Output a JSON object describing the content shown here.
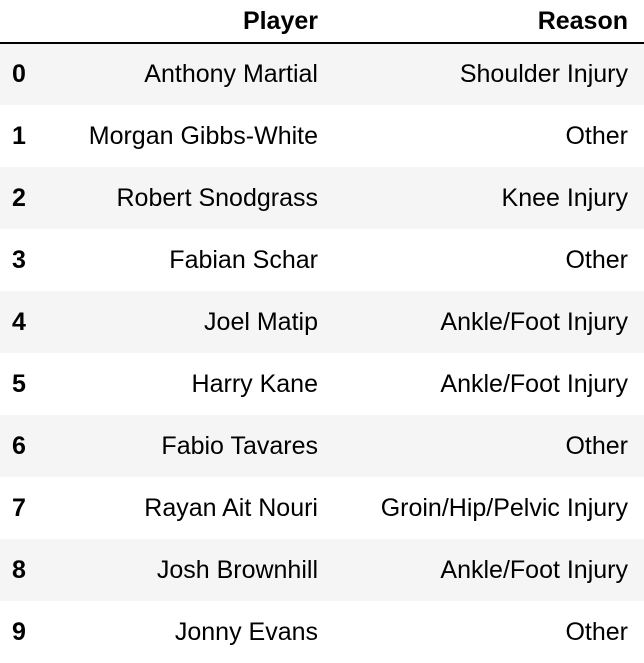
{
  "table": {
    "columns": [
      "",
      "Player",
      "Reason"
    ],
    "rows": [
      {
        "index": "0",
        "player": "Anthony Martial",
        "reason": "Shoulder Injury"
      },
      {
        "index": "1",
        "player": "Morgan Gibbs-White",
        "reason": "Other"
      },
      {
        "index": "2",
        "player": "Robert Snodgrass",
        "reason": "Knee Injury"
      },
      {
        "index": "3",
        "player": "Fabian Schar",
        "reason": "Other"
      },
      {
        "index": "4",
        "player": "Joel Matip",
        "reason": "Ankle/Foot Injury"
      },
      {
        "index": "5",
        "player": "Harry Kane",
        "reason": "Ankle/Foot Injury"
      },
      {
        "index": "6",
        "player": "Fabio Tavares",
        "reason": "Other"
      },
      {
        "index": "7",
        "player": "Rayan Ait Nouri",
        "reason": "Groin/Hip/Pelvic Injury"
      },
      {
        "index": "8",
        "player": "Josh Brownhill",
        "reason": "Ankle/Foot Injury"
      },
      {
        "index": "9",
        "player": "Jonny Evans",
        "reason": "Other"
      }
    ]
  },
  "colors": {
    "stripe": "#f5f5f5",
    "background": "#ffffff",
    "text": "#000000"
  }
}
